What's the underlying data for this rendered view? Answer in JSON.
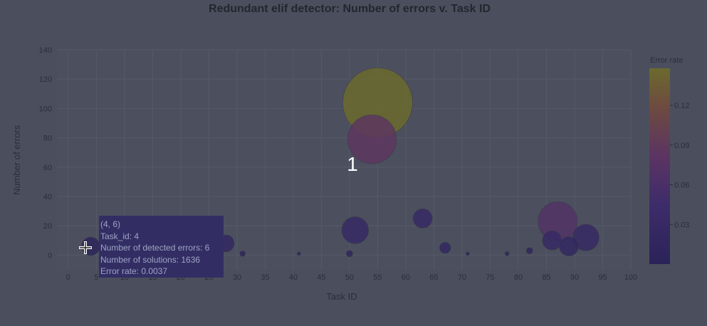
{
  "chart_data": {
    "type": "scatter",
    "title": "Redundant elif detector: Number of errors v. Task ID",
    "xlabel": "Task ID",
    "ylabel": "Number of errors",
    "xlim": [
      -2,
      100
    ],
    "ylim": [
      -10,
      140
    ],
    "xticks": [
      "0",
      "5",
      "10",
      "15",
      "20",
      "25",
      "30",
      "35",
      "40",
      "45",
      "50",
      "55",
      "60",
      "65",
      "70",
      "75",
      "80",
      "85",
      "90",
      "95",
      "100"
    ],
    "yticks": [
      "0",
      "20",
      "40",
      "60",
      "80",
      "100",
      "120",
      "140"
    ],
    "grid": true,
    "colorbar": {
      "title": "Error rate",
      "range": [
        0,
        0.148
      ],
      "ticks": [
        "0.03",
        "0.06",
        "0.09",
        "0.12"
      ]
    },
    "points": [
      {
        "x": 4,
        "y": 6,
        "rate": 0.0037,
        "size": 1636
      },
      {
        "x": 28,
        "y": 8,
        "rate": 0.02,
        "size": 1400
      },
      {
        "x": 31,
        "y": 1,
        "rate": 0.01,
        "size": 150
      },
      {
        "x": 41,
        "y": 1,
        "rate": 0.01,
        "size": 60
      },
      {
        "x": 50,
        "y": 1,
        "rate": 0.01,
        "size": 200
      },
      {
        "x": 51,
        "y": 17,
        "rate": 0.03,
        "size": 3500
      },
      {
        "x": 54,
        "y": 79,
        "rate": 0.085,
        "size": 11500
      },
      {
        "x": 55,
        "y": 104,
        "rate": 0.148,
        "size": 23500
      },
      {
        "x": 63,
        "y": 25,
        "rate": 0.03,
        "size": 1800
      },
      {
        "x": 67,
        "y": 5,
        "rate": 0.02,
        "size": 600
      },
      {
        "x": 71,
        "y": 1,
        "rate": 0.01,
        "size": 40
      },
      {
        "x": 78,
        "y": 1,
        "rate": 0.01,
        "size": 90
      },
      {
        "x": 82,
        "y": 3,
        "rate": 0.01,
        "size": 200
      },
      {
        "x": 86,
        "y": 10,
        "rate": 0.03,
        "size": 1800
      },
      {
        "x": 87,
        "y": 23,
        "rate": 0.07,
        "size": 7500
      },
      {
        "x": 89,
        "y": 6,
        "rate": 0.02,
        "size": 1800
      },
      {
        "x": 92,
        "y": 12,
        "rate": 0.03,
        "size": 3400
      }
    ],
    "annotation": "1"
  },
  "tooltip": {
    "line1": "(4, 6)",
    "line2": "Task_id: 4",
    "line3": "Number of detected errors: 6",
    "line4": "Number of solutions: 1636",
    "line5": "Error rate: 0.0037"
  }
}
